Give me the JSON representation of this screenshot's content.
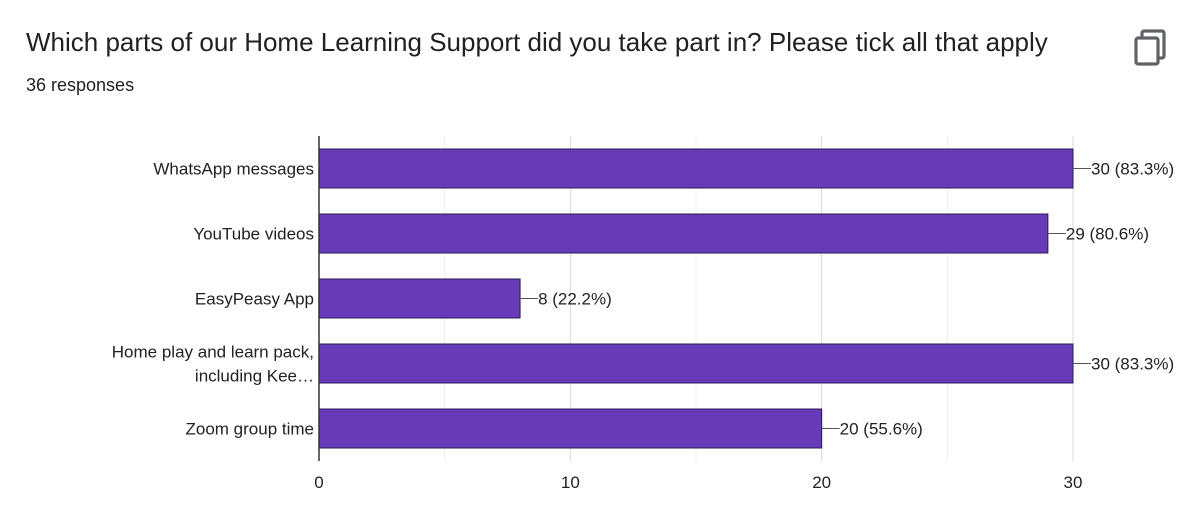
{
  "header": {
    "title": "Which parts of our Home Learning Support did you take part in? Please tick all that apply",
    "responses": "36 responses",
    "copy_icon": "copy-icon"
  },
  "chart_data": {
    "type": "bar",
    "orientation": "horizontal",
    "categories": [
      [
        "WhatsApp messages"
      ],
      [
        "YouTube videos"
      ],
      [
        "EasyPeasy App"
      ],
      [
        "Home play and learn pack,",
        "including Kee…"
      ],
      [
        "Zoom group time"
      ]
    ],
    "values": [
      30,
      29,
      8,
      30,
      20
    ],
    "data_labels": [
      "30 (83.3%)",
      "29 (80.6%)",
      "8 (22.2%)",
      "30 (83.3%)",
      "20 (55.6%)"
    ],
    "xlim": [
      0,
      30
    ],
    "xticks": [
      "0",
      "10",
      "20",
      "30"
    ],
    "grid": true,
    "bar_color": "#673ab7"
  }
}
